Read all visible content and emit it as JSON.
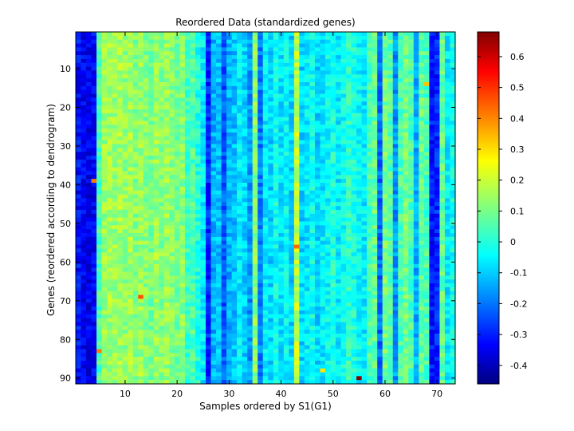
{
  "chart_data": {
    "type": "heatmap",
    "title": "Reordered Data (standardized genes)",
    "xlabel": "Samples ordered by S1(G1)",
    "ylabel": "Genes (reordered according to dendrogram)",
    "n_samples": 73,
    "n_genes": 91,
    "xlim": [
      0.5,
      73.5
    ],
    "ylim": [
      0.5,
      91.5
    ],
    "y_axis_reversed": true,
    "x_ticks": [
      10,
      20,
      30,
      40,
      50,
      60,
      70
    ],
    "y_ticks": [
      10,
      20,
      30,
      40,
      50,
      60,
      70,
      80,
      90
    ],
    "colormap": "jet",
    "color_range": [
      -0.46,
      0.68
    ],
    "colorbar_ticks": [
      -0.4,
      -0.3,
      -0.2,
      -0.1,
      0,
      0.1,
      0.2,
      0.3,
      0.4,
      0.5,
      0.6
    ],
    "column_profile": [
      -0.3,
      -0.33,
      -0.34,
      -0.32,
      0.05,
      0.14,
      0.15,
      0.14,
      0.15,
      0.13,
      0.15,
      0.12,
      0.14,
      0.12,
      0.1,
      0.14,
      0.12,
      0.14,
      0.12,
      0.1,
      0.12,
      0.03,
      0.06,
      0.0,
      -0.05,
      -0.28,
      -0.12,
      -0.1,
      -0.22,
      -0.12,
      -0.1,
      -0.05,
      -0.08,
      -0.15,
      0.12,
      -0.18,
      -0.05,
      -0.08,
      -0.02,
      -0.06,
      -0.03,
      -0.08,
      0.18,
      -0.08,
      -0.05,
      -0.02,
      -0.08,
      -0.05,
      -0.03,
      0.0,
      -0.05,
      -0.02,
      0.02,
      0.0,
      -0.03,
      -0.05,
      0.05,
      0.08,
      -0.2,
      0.1,
      0.06,
      -0.15,
      0.05,
      0.1,
      0.05,
      -0.12,
      0.08,
      0.05,
      -0.3,
      -0.28,
      0.08,
      -0.05,
      -0.02
    ],
    "noise_amplitude": 0.06,
    "notable_cells": [
      {
        "sample": 4,
        "gene": 39,
        "value": 0.4
      },
      {
        "sample": 5,
        "gene": 83,
        "value": 0.4
      },
      {
        "sample": 13,
        "gene": 69,
        "value": 0.45
      },
      {
        "sample": 43,
        "gene": 56,
        "value": 0.42
      },
      {
        "sample": 48,
        "gene": 88,
        "value": 0.28
      },
      {
        "sample": 55,
        "gene": 90,
        "value": 0.67
      },
      {
        "sample": 68,
        "gene": 14,
        "value": 0.32
      }
    ]
  }
}
